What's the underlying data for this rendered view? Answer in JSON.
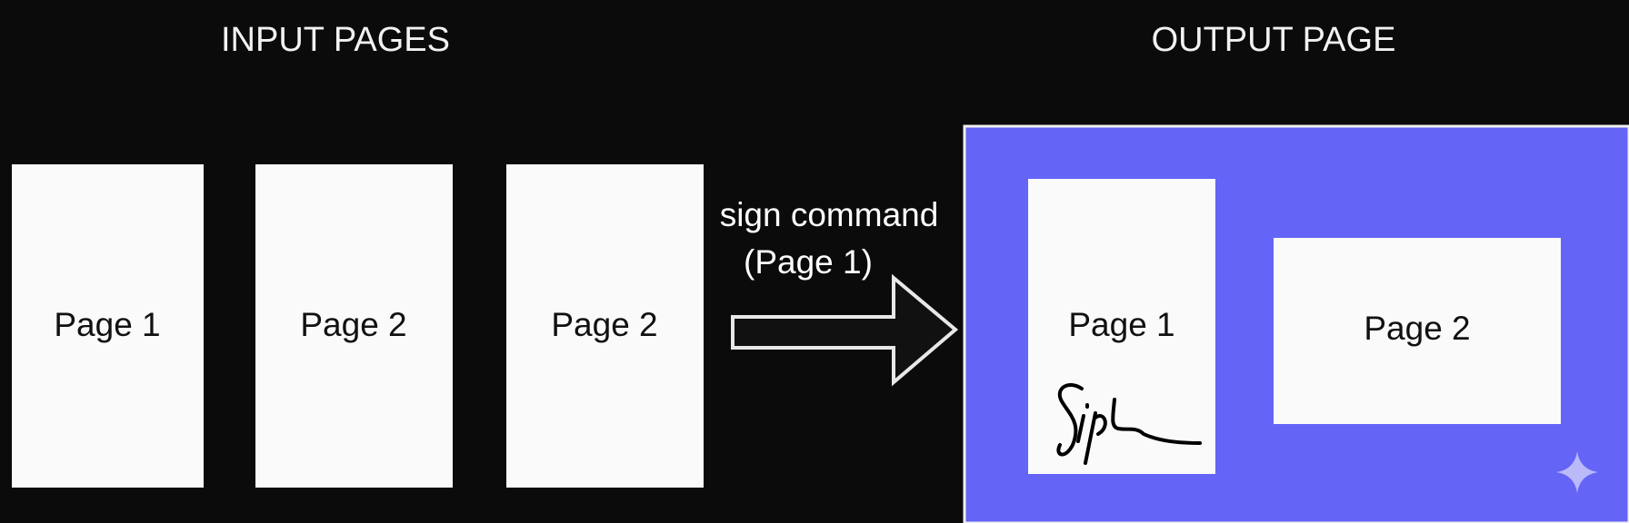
{
  "input": {
    "title": "INPUT PAGES",
    "pages": [
      "Page 1",
      "Page 2",
      "Page 2"
    ]
  },
  "command": {
    "lines": [
      "sign command",
      "(Page 1)"
    ]
  },
  "output": {
    "title": "OUTPUT PAGE",
    "pages": [
      "Page 1",
      "Page 2"
    ]
  }
}
